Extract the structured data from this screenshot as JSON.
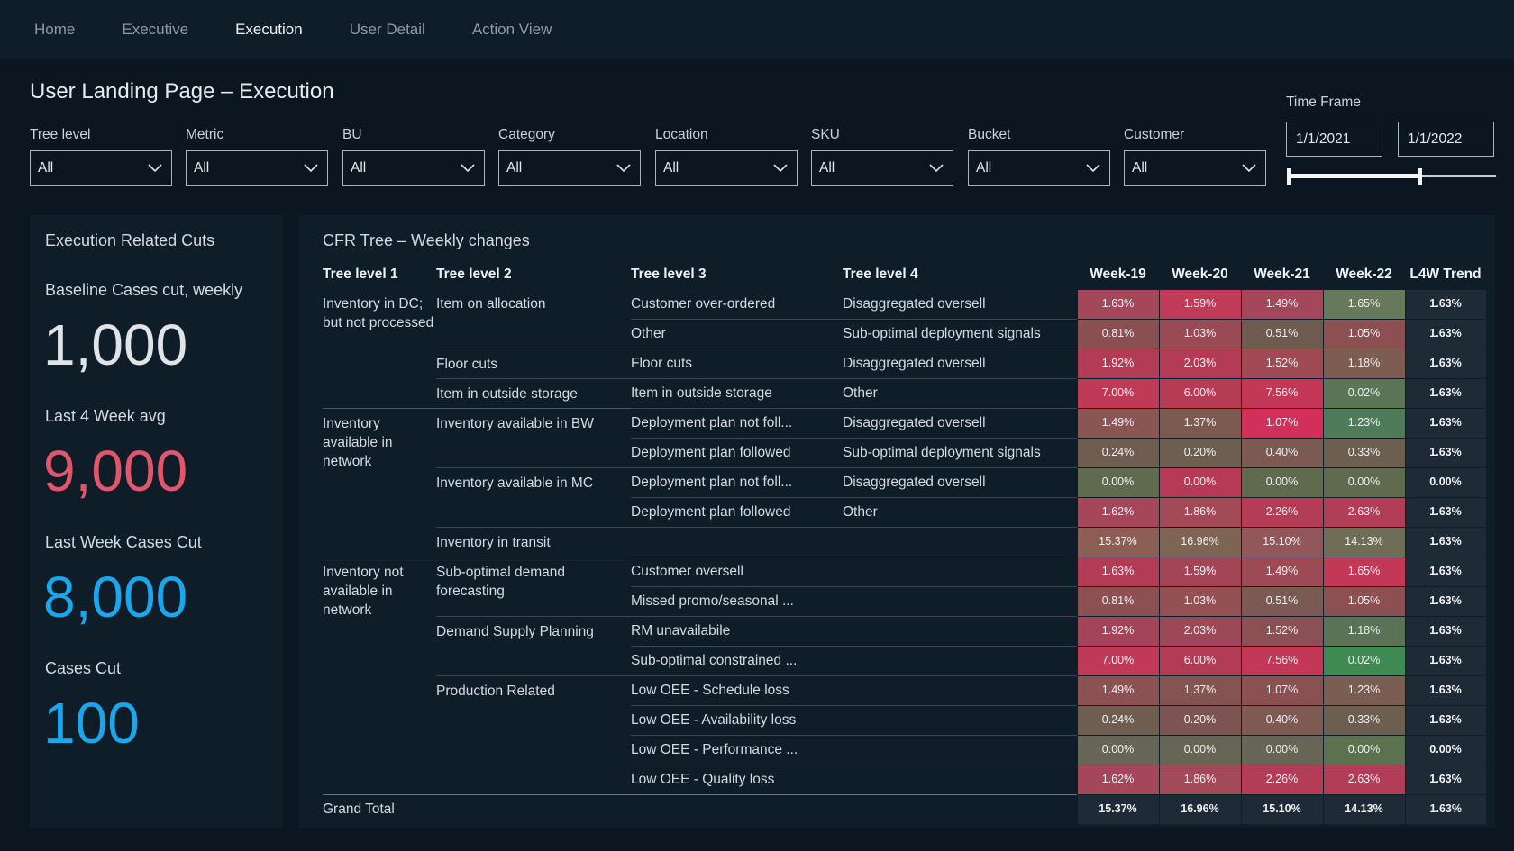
{
  "nav": {
    "tabs": [
      {
        "label": "Home",
        "active": false
      },
      {
        "label": "Executive",
        "active": false
      },
      {
        "label": "Execution",
        "active": true
      },
      {
        "label": "User Detail",
        "active": false
      },
      {
        "label": "Action View",
        "active": false
      }
    ]
  },
  "page": {
    "title": "User Landing Page – Execution"
  },
  "filters": [
    {
      "label": "Tree level",
      "value": "All"
    },
    {
      "label": "Metric",
      "value": "All"
    },
    {
      "label": "BU",
      "value": "All"
    },
    {
      "label": "Category",
      "value": "All"
    },
    {
      "label": "Location",
      "value": "All"
    },
    {
      "label": "SKU",
      "value": "All"
    },
    {
      "label": "Bucket",
      "value": "All"
    },
    {
      "label": "Customer",
      "value": "All"
    }
  ],
  "timeframe": {
    "label": "Time Frame",
    "start": "1/1/2021",
    "end": "1/1/2022"
  },
  "kpis": {
    "panel_title": "Execution Related Cuts",
    "items": [
      {
        "label": "Baseline Cases cut, weekly",
        "value": "1,000",
        "color": "#dfe4e8"
      },
      {
        "label": "Last 4 Week avg",
        "value": "9,000",
        "color": "#e0566c"
      },
      {
        "label": "Last Week Cases Cut",
        "value": "8,000",
        "color": "#1aa7ec"
      },
      {
        "label": "Cases Cut",
        "value": "100",
        "color": "#1aa7ec"
      }
    ]
  },
  "tree": {
    "title": "CFR Tree – Weekly changes",
    "columns": [
      "Tree level 1",
      "Tree level 2",
      "Tree level 3",
      "Tree level 4",
      "Week-19",
      "Week-20",
      "Week-21",
      "Week-22",
      "L4W Trend"
    ],
    "rows": [
      {
        "l1": "Inventory in DC; but not processed",
        "l1span": 4,
        "l2": "Item on allocation",
        "l2span": 2,
        "l3": "Customer over-ordered",
        "l4": "Disaggregated oversell",
        "vals": [
          "1.63%",
          "1.59%",
          "1.49%",
          "1.65%"
        ],
        "trend": "1.63%"
      },
      {
        "l3": "Other",
        "l4": "Sub-optimal deployment signals",
        "vals": [
          "0.81%",
          "1.03%",
          "0.51%",
          "1.05%"
        ],
        "trend": "1.63%"
      },
      {
        "l2": "Floor cuts",
        "l2span": 1,
        "l3": "Floor cuts",
        "l4": "Disaggregated oversell",
        "vals": [
          "1.92%",
          "2.03%",
          "1.52%",
          "1.18%"
        ],
        "trend": "1.63%"
      },
      {
        "l2": "Item in outside storage",
        "l2span": 1,
        "l3": "Item in outside storage",
        "l4": "Other",
        "vals": [
          "7.00%",
          "6.00%",
          "7.56%",
          "0.02%"
        ],
        "trend": "1.63%"
      },
      {
        "l1": "Inventory available in network",
        "l1span": 5,
        "l2": "Inventory available in BW",
        "l2span": 2,
        "l3": "Deployment plan not foll...",
        "l4": "Disaggregated oversell",
        "vals": [
          "1.49%",
          "1.37%",
          "1.07%",
          "1.23%"
        ],
        "trend": "1.63%"
      },
      {
        "l3": "Deployment plan followed",
        "l4": "Sub-optimal deployment signals",
        "vals": [
          "0.24%",
          "0.20%",
          "0.40%",
          "0.33%"
        ],
        "trend": "1.63%"
      },
      {
        "l2": "Inventory available in MC",
        "l2span": 2,
        "l3": "Deployment plan not foll...",
        "l4": "Disaggregated oversell",
        "vals": [
          "0.00%",
          "0.00%",
          "0.00%",
          "0.00%"
        ],
        "trend": "0.00%"
      },
      {
        "l3": "Deployment plan followed",
        "l4": "Other",
        "vals": [
          "1.62%",
          "1.86%",
          "2.26%",
          "2.63%"
        ],
        "trend": "1.63%"
      },
      {
        "l2": "Inventory in transit",
        "l2span": 1,
        "l3": "",
        "l4": "",
        "vals": [
          "15.37%",
          "16.96%",
          "15.10%",
          "14.13%"
        ],
        "trend": "1.63%"
      },
      {
        "l1": "Inventory not available in network",
        "l1span": 8,
        "l2": "Sub-optimal demand forecasting",
        "l2span": 2,
        "l3": "Customer oversell",
        "l4": "",
        "vals": [
          "1.63%",
          "1.59%",
          "1.49%",
          "1.65%"
        ],
        "trend": "1.63%"
      },
      {
        "l3": "Missed promo/seasonal ...",
        "l4": "",
        "vals": [
          "0.81%",
          "1.03%",
          "0.51%",
          "1.05%"
        ],
        "trend": "1.63%"
      },
      {
        "l2": "Demand Supply Planning",
        "l2span": 2,
        "l3": "RM unavailabile",
        "l4": "",
        "vals": [
          "1.92%",
          "2.03%",
          "1.52%",
          "1.18%"
        ],
        "trend": "1.63%"
      },
      {
        "l3": "Sub-optimal constrained ...",
        "l4": "",
        "vals": [
          "7.00%",
          "6.00%",
          "7.56%",
          "0.02%"
        ],
        "trend": "1.63%"
      },
      {
        "l2": "Production Related",
        "l2span": 4,
        "l3": "Low OEE - Schedule loss",
        "l4": "",
        "vals": [
          "1.49%",
          "1.37%",
          "1.07%",
          "1.23%"
        ],
        "trend": "1.63%"
      },
      {
        "l3": "Low OEE - Availability loss",
        "l4": "",
        "vals": [
          "0.24%",
          "0.20%",
          "0.40%",
          "0.33%"
        ],
        "trend": "1.63%"
      },
      {
        "l3": "Low OEE - Performance ...",
        "l4": "",
        "vals": [
          "0.00%",
          "0.00%",
          "0.00%",
          "0.00%"
        ],
        "trend": "0.00%"
      },
      {
        "l3": "Low OEE - Quality loss",
        "l4": "",
        "vals": [
          "1.62%",
          "1.86%",
          "2.26%",
          "2.63%"
        ],
        "trend": "1.63%"
      }
    ],
    "total": {
      "label": "Grand Total",
      "vals": [
        "15.37%",
        "16.96%",
        "15.10%",
        "14.13%"
      ],
      "trend": "1.63%"
    },
    "heat_colors": [
      [
        "#a5475a",
        "#c13a58",
        "#a5475a",
        "#68785a"
      ],
      [
        "#8a4f52",
        "#9a4a55",
        "#6f5a4f",
        "#8d5052"
      ],
      [
        "#b23c55",
        "#b43b55",
        "#a04a55",
        "#7d5d52"
      ],
      [
        "#bf3a56",
        "#b63c55",
        "#c23856",
        "#5a7656"
      ],
      [
        "#8b5553",
        "#7c5a51",
        "#d0305a",
        "#4f7b5b"
      ],
      [
        "#6f5e4f",
        "#6d5f4f",
        "#7a5a52",
        "#6c5f4f"
      ],
      [
        "#5f6a4f",
        "#b63a55",
        "#5f6a4f",
        "#5f6a4f"
      ],
      [
        "#a5475a",
        "#a34a58",
        "#b33d56",
        "#b13e56"
      ],
      [
        "#8d5e54",
        "#7d6453",
        "#91575a",
        "#6f6d55"
      ],
      [
        "#b23c55",
        "#a24556",
        "#9b4a56",
        "#c23856"
      ],
      [
        "#8d5052",
        "#955053",
        "#7a5a52",
        "#8d5052"
      ],
      [
        "#a34458",
        "#9c4856",
        "#8a5053",
        "#5a7256"
      ],
      [
        "#c03957",
        "#b23c55",
        "#c23856",
        "#3f8a52"
      ],
      [
        "#8c5253",
        "#835451",
        "#8a5052",
        "#7a5e52"
      ],
      [
        "#6f5e4f",
        "#7c5452",
        "#7f5a52",
        "#6c5f4f"
      ],
      [
        "#676555",
        "#676555",
        "#676555",
        "#5c7150"
      ],
      [
        "#a5475a",
        "#a34a58",
        "#b33d56",
        "#b13e56"
      ]
    ]
  }
}
